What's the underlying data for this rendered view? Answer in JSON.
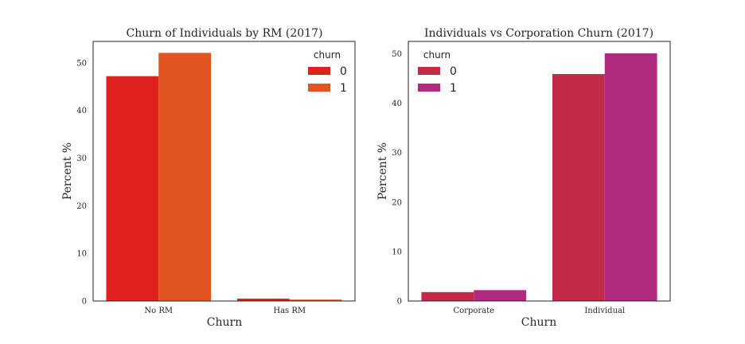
{
  "chart_data": [
    {
      "type": "bar",
      "title": "Churn of Individuals by RM (2017)",
      "xlabel": "Churn",
      "ylabel": "Percent %",
      "categories": [
        "No RM",
        "Has RM"
      ],
      "ylim": [
        0,
        54.5
      ],
      "yticks": [
        0,
        10,
        20,
        30,
        40,
        50
      ],
      "legend": {
        "title": "churn",
        "placement": "top-right"
      },
      "series": [
        {
          "name": "0",
          "color": "#e0221f",
          "values": [
            47.2,
            0.5
          ]
        },
        {
          "name": "1",
          "color": "#e05621",
          "values": [
            52.1,
            0.3
          ]
        }
      ]
    },
    {
      "type": "bar",
      "title": "Individuals vs Corporation Churn (2017)",
      "xlabel": "Churn",
      "ylabel": "Percent %",
      "categories": [
        "Corporate",
        "Individual"
      ],
      "ylim": [
        0,
        52.5
      ],
      "yticks": [
        0,
        10,
        20,
        30,
        40,
        50
      ],
      "legend": {
        "title": "churn",
        "placement": "top-left"
      },
      "series": [
        {
          "name": "0",
          "color": "#c22a47",
          "values": [
            1.8,
            45.9
          ]
        },
        {
          "name": "1",
          "color": "#b02a80",
          "values": [
            2.2,
            50.1
          ]
        }
      ]
    }
  ]
}
